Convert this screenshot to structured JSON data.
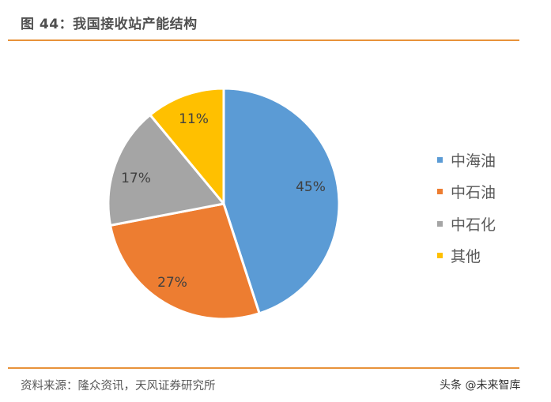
{
  "figure": {
    "title": "图 44：我国接收站产能结构",
    "source": "资料来源：隆众资讯，天风证券研究所",
    "watermark": "头条 @未来智库",
    "rule_color": "#E8923A"
  },
  "chart_data": {
    "type": "pie",
    "title": "我国接收站产能结构",
    "categories": [
      "中海油",
      "中石油",
      "中石化",
      "其他"
    ],
    "values": [
      45,
      27,
      17,
      11
    ],
    "unit": "%",
    "labels": [
      "45%",
      "27%",
      "17%",
      "11%"
    ],
    "colors": [
      "#5B9BD5",
      "#ED7D31",
      "#A5A5A5",
      "#FFC000"
    ],
    "start_angle": "12 o'clock, clockwise",
    "legend_position": "right"
  },
  "legend": {
    "items": [
      {
        "label": "中海油",
        "color": "#5B9BD5"
      },
      {
        "label": "中石油",
        "color": "#ED7D31"
      },
      {
        "label": "中石化",
        "color": "#A5A5A5"
      },
      {
        "label": "其他",
        "color": "#FFC000"
      }
    ]
  }
}
